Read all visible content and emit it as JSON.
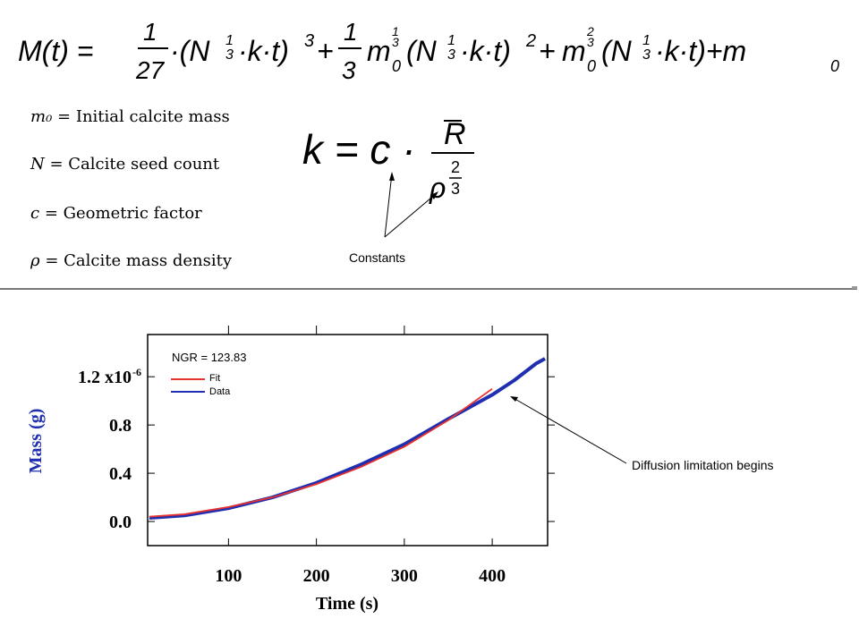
{
  "equations": {
    "main": "M(t) = 1/27 · (N^(1/3)·k·t)^3 + 1/3 m0^(1/3) (N^(1/3)·k·t)^2 + m0^(2/3) (N^(1/3)·k·t) + m0",
    "k": "k = c · R̄ / ρ^(2/3)"
  },
  "definitions": [
    {
      "symbol": "m₀",
      "text": "= Initial calcite mass"
    },
    {
      "symbol": "N",
      "text": "= Calcite seed count"
    },
    {
      "symbol": "c",
      "text": "= Geometric factor"
    },
    {
      "symbol": "ρ",
      "text": "= Calcite mass density"
    }
  ],
  "annotations": {
    "constants": "Constants",
    "diffusion": "Diffusion limitation begins"
  },
  "colors": {
    "fit": "#e8322f",
    "data": "#1f2fb0",
    "ylabel": "#1f2fb0"
  },
  "chart_data": {
    "type": "line",
    "title": "NGR = 123.83",
    "xlabel": "Time (s)",
    "ylabel": "Mass (g)",
    "xlim": [
      8,
      463
    ],
    "ylim": [
      -0.2,
      1.55
    ],
    "x_ticks": [
      100,
      200,
      300,
      400
    ],
    "x_tick_labels": [
      "100",
      "200",
      "300",
      "400"
    ],
    "y_ticks": [
      0.0,
      0.4,
      0.8,
      1.2
    ],
    "y_tick_labels": [
      "0.0",
      "0.4",
      "0.8",
      "1.2 x10"
    ],
    "y_exponent": "-6",
    "legend_position": "top-left",
    "series": [
      {
        "name": "Fit",
        "x": [
          10,
          50,
          100,
          150,
          200,
          250,
          300,
          350,
          400
        ],
        "y": [
          0.04,
          0.06,
          0.12,
          0.2,
          0.31,
          0.45,
          0.62,
          0.84,
          1.1
        ]
      },
      {
        "name": "Data",
        "x": [
          10,
          50,
          100,
          150,
          200,
          250,
          300,
          350,
          400,
          425,
          450,
          460
        ],
        "y": [
          0.03,
          0.05,
          0.11,
          0.2,
          0.32,
          0.47,
          0.64,
          0.85,
          1.05,
          1.17,
          1.31,
          1.35
        ]
      }
    ]
  }
}
